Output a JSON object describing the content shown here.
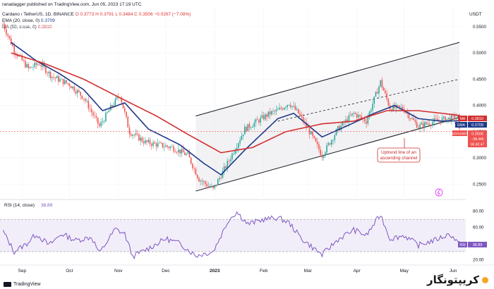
{
  "header": {
    "author": "ranadagger published on TradingView.com, Jun 05, 2023 17:19 UTC",
    "symbol": "Cardano / TetherUS, 1D, BINANCE",
    "ohlc": "O 0.3773  H 0.3791  L 0.3484  C 0.3506  −0.0267 (−7.08%)",
    "ema_label": "EMA (20, close, 0)",
    "ema_value": "0.3709",
    "ma_label": "MA (50, close, 0)",
    "ma_value": "0.3810"
  },
  "annotation": {
    "line1": "Uptrend line of an",
    "line2": "ascending channel"
  },
  "rsi_header": {
    "label": "RSI (14, close)",
    "value": "38.89"
  },
  "tags": {
    "ma_tag": "MA",
    "ma_val": "0.3810",
    "ema_tag": "EMA",
    "ema_val": "0.3709",
    "sym_tag": "ADAUSDT",
    "price_val": "0.3506",
    "change_val": "−38.445",
    "countdown": "06:40:47",
    "rsi_tag": "RSI",
    "rsi_val": "38.89"
  },
  "footer": {
    "tv": "TradingView",
    "brand": "کریپتونگار"
  },
  "colors": {
    "up": "#26a69a",
    "down": "#ef5350",
    "ema": "#1e3a8a",
    "ma": "#d32f2f",
    "channel": "#131722",
    "rsi": "#7e57c2"
  },
  "chart_data": {
    "type": "candlestick",
    "currency": "USDT",
    "x_ticks": [
      "Sep",
      "Oct",
      "Nov",
      "Dec",
      "2023",
      "Feb",
      "Mar",
      "Apr",
      "May",
      "Jun"
    ],
    "price_axis": {
      "ticks": [
        0.25,
        0.3,
        0.35,
        0.4,
        0.45,
        0.5,
        0.55
      ],
      "labels": [
        "0.2500",
        "0.3000",
        "0.3500",
        "0.4000",
        "0.4500",
        "0.5000",
        "0.5500"
      ],
      "range": [
        0.225,
        0.59
      ]
    },
    "rsi_axis": {
      "ticks": [
        20,
        40,
        60,
        80
      ],
      "labels": [
        "20.00",
        "40.00",
        "60.00",
        "80.00"
      ],
      "range": [
        16,
        92
      ],
      "bands": [
        30,
        70
      ]
    },
    "price_keypoints": [
      [
        "2022-08-20",
        0.555
      ],
      [
        "2022-08-27",
        0.505
      ],
      [
        "2022-09-05",
        0.47
      ],
      [
        "2022-09-12",
        0.48
      ],
      [
        "2022-09-20",
        0.455
      ],
      [
        "2022-10-01",
        0.44
      ],
      [
        "2022-10-10",
        0.415
      ],
      [
        "2022-10-20",
        0.36
      ],
      [
        "2022-10-27",
        0.395
      ],
      [
        "2022-11-02",
        0.42
      ],
      [
        "2022-11-08",
        0.35
      ],
      [
        "2022-11-18",
        0.33
      ],
      [
        "2022-12-05",
        0.32
      ],
      [
        "2022-12-15",
        0.305
      ],
      [
        "2022-12-22",
        0.26
      ],
      [
        "2022-12-31",
        0.24
      ],
      [
        "2023-01-10",
        0.295
      ],
      [
        "2023-01-20",
        0.355
      ],
      [
        "2023-02-05",
        0.385
      ],
      [
        "2023-02-10",
        0.39
      ],
      [
        "2023-02-17",
        0.405
      ],
      [
        "2023-02-23",
        0.385
      ],
      [
        "2023-03-02",
        0.35
      ],
      [
        "2023-03-10",
        0.305
      ],
      [
        "2023-03-20",
        0.355
      ],
      [
        "2023-03-30",
        0.385
      ],
      [
        "2023-04-07",
        0.37
      ],
      [
        "2023-04-16",
        0.445
      ],
      [
        "2023-04-22",
        0.395
      ],
      [
        "2023-04-30",
        0.395
      ],
      [
        "2023-05-10",
        0.36
      ],
      [
        "2023-05-20",
        0.37
      ],
      [
        "2023-05-30",
        0.375
      ],
      [
        "2023-06-04",
        0.378
      ],
      [
        "2023-06-05",
        0.3506
      ]
    ],
    "ema20_keypoints": [
      [
        "2022-08-25",
        0.52
      ],
      [
        "2022-09-10",
        0.485
      ],
      [
        "2022-09-25",
        0.46
      ],
      [
        "2022-10-10",
        0.43
      ],
      [
        "2022-10-22",
        0.39
      ],
      [
        "2022-11-05",
        0.405
      ],
      [
        "2022-11-20",
        0.355
      ],
      [
        "2022-12-10",
        0.325
      ],
      [
        "2022-12-25",
        0.29
      ],
      [
        "2023-01-05",
        0.268
      ],
      [
        "2023-01-20",
        0.315
      ],
      [
        "2023-02-10",
        0.375
      ],
      [
        "2023-02-20",
        0.385
      ],
      [
        "2023-03-10",
        0.34
      ],
      [
        "2023-03-25",
        0.36
      ],
      [
        "2023-04-12",
        0.385
      ],
      [
        "2023-04-25",
        0.4
      ],
      [
        "2023-05-10",
        0.375
      ],
      [
        "2023-05-25",
        0.37
      ],
      [
        "2023-06-05",
        0.3709
      ]
    ],
    "ma50_keypoints": [
      [
        "2022-08-25",
        0.5
      ],
      [
        "2022-09-15",
        0.48
      ],
      [
        "2022-10-10",
        0.45
      ],
      [
        "2022-11-05",
        0.41
      ],
      [
        "2022-11-25",
        0.38
      ],
      [
        "2022-12-15",
        0.345
      ],
      [
        "2023-01-05",
        0.31
      ],
      [
        "2023-01-25",
        0.32
      ],
      [
        "2023-02-15",
        0.35
      ],
      [
        "2023-03-10",
        0.365
      ],
      [
        "2023-03-30",
        0.37
      ],
      [
        "2023-04-20",
        0.39
      ],
      [
        "2023-05-10",
        0.39
      ],
      [
        "2023-05-25",
        0.385
      ],
      [
        "2023-06-05",
        0.381
      ]
    ],
    "channel_upper": [
      [
        "2022-12-20",
        0.38
      ],
      [
        "2023-06-05",
        0.52
      ]
    ],
    "channel_lower": [
      [
        "2022-12-20",
        0.237
      ],
      [
        "2023-06-05",
        0.377
      ]
    ],
    "channel_mid_dashed": [
      [
        "2023-02-10",
        0.37
      ],
      [
        "2023-06-05",
        0.45
      ]
    ],
    "rsi_keypoints": [
      [
        "2022-08-20",
        55
      ],
      [
        "2022-08-27",
        30
      ],
      [
        "2022-09-04",
        40
      ],
      [
        "2022-09-10",
        52
      ],
      [
        "2022-09-18",
        38
      ],
      [
        "2022-09-26",
        52
      ],
      [
        "2022-10-05",
        44
      ],
      [
        "2022-10-15",
        48
      ],
      [
        "2022-10-20",
        28
      ],
      [
        "2022-10-30",
        58
      ],
      [
        "2022-11-05",
        52
      ],
      [
        "2022-11-10",
        24
      ],
      [
        "2022-11-20",
        34
      ],
      [
        "2022-12-01",
        46
      ],
      [
        "2022-12-10",
        40
      ],
      [
        "2022-12-20",
        25
      ],
      [
        "2022-12-31",
        30
      ],
      [
        "2023-01-10",
        70
      ],
      [
        "2023-01-15",
        79
      ],
      [
        "2023-01-22",
        64
      ],
      [
        "2023-02-01",
        70
      ],
      [
        "2023-02-10",
        72
      ],
      [
        "2023-02-17",
        66
      ],
      [
        "2023-02-25",
        46
      ],
      [
        "2023-03-10",
        26
      ],
      [
        "2023-03-20",
        45
      ],
      [
        "2023-03-30",
        57
      ],
      [
        "2023-04-07",
        50
      ],
      [
        "2023-04-16",
        76
      ],
      [
        "2023-04-22",
        46
      ],
      [
        "2023-05-01",
        50
      ],
      [
        "2023-05-10",
        38
      ],
      [
        "2023-05-20",
        44
      ],
      [
        "2023-05-30",
        52
      ],
      [
        "2023-06-05",
        38.89
      ]
    ]
  }
}
